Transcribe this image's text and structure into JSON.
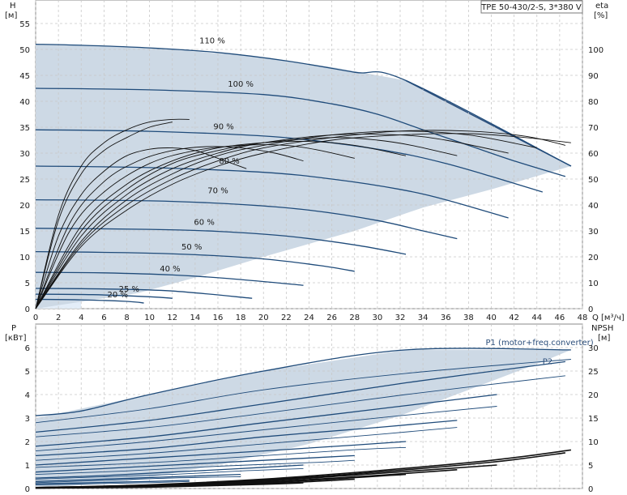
{
  "title_box": "TPE 50-430/2-S, 3*380 V",
  "colors": {
    "envelope_fill": "#cdd9e5",
    "envelope_light": "#e3edf8",
    "envelope_edge": "#2a4d7a",
    "speed_curve": "#1f4b7a",
    "eta_curve": "#111111",
    "grid": "#c8c8c8",
    "axis": "#888888"
  },
  "chart_data": [
    {
      "type": "line",
      "panel": "head",
      "ylabel_left": "H",
      "yunit_left": "[м]",
      "ylabel_right": "eta",
      "yunit_right": "[%]",
      "xlabel": "Q",
      "xunit": "[м³/ч]",
      "xlim": [
        0,
        48
      ],
      "xticks": [
        0,
        2,
        4,
        6,
        8,
        10,
        12,
        14,
        16,
        18,
        20,
        22,
        24,
        26,
        28,
        30,
        32,
        34,
        36,
        38,
        40,
        42,
        44,
        46,
        48
      ],
      "ylim_left": [
        0,
        55
      ],
      "yticks_left": [
        0,
        5,
        10,
        15,
        20,
        25,
        30,
        35,
        40,
        45,
        50,
        55
      ],
      "ylim_right": [
        0,
        110
      ],
      "yticks_right": [
        0,
        10,
        20,
        30,
        40,
        50,
        60,
        70,
        80,
        90,
        100
      ],
      "grid": true,
      "speed_labels": [
        {
          "label": "110 %",
          "x": 15.5,
          "y": 51.2
        },
        {
          "label": "100 %",
          "x": 18.0,
          "y": 42.8
        },
        {
          "label": "90 %",
          "x": 16.5,
          "y": 34.6
        },
        {
          "label": "80 %",
          "x": 17.0,
          "y": 28.0
        },
        {
          "label": "70 %",
          "x": 16.0,
          "y": 22.3
        },
        {
          "label": "60 %",
          "x": 14.8,
          "y": 16.2
        },
        {
          "label": "50 %",
          "x": 13.7,
          "y": 11.4
        },
        {
          "label": "40 %",
          "x": 11.8,
          "y": 7.2
        },
        {
          "label": "25 %",
          "x": 8.2,
          "y": 3.3
        },
        {
          "label": "20 %",
          "x": 7.2,
          "y": 2.2
        }
      ],
      "envelope": [
        [
          0,
          51
        ],
        [
          4,
          50.8
        ],
        [
          10,
          50.3
        ],
        [
          18,
          48.9
        ],
        [
          26,
          46.6
        ],
        [
          32.5,
          44
        ],
        [
          47,
          27.5
        ],
        [
          40,
          23
        ],
        [
          34,
          19.5
        ],
        [
          28,
          15
        ],
        [
          20,
          10
        ],
        [
          14,
          6
        ],
        [
          9,
          3
        ],
        [
          0,
          0
        ]
      ],
      "speed_curves": [
        {
          "pct": 110,
          "x": [
            0,
            4,
            10,
            16,
            22,
            28,
            32.5,
            47
          ],
          "y": [
            51,
            50.8,
            50.3,
            49.4,
            47.8,
            45.6,
            44,
            27.5
          ]
        },
        {
          "pct": 100,
          "x": [
            0,
            10,
            20,
            26,
            30,
            34,
            38,
            42,
            46.5
          ],
          "y": [
            42.5,
            42.2,
            41.3,
            39.5,
            37.5,
            34.5,
            31.5,
            28.5,
            25.5
          ]
        },
        {
          "pct": 90,
          "x": [
            0,
            10,
            20,
            26,
            32,
            36,
            40,
            44.5
          ],
          "y": [
            34.5,
            34.2,
            33.3,
            32,
            30,
            28,
            25.5,
            22.5
          ]
        },
        {
          "pct": 80,
          "x": [
            0,
            10,
            20,
            26,
            32,
            36,
            41.5
          ],
          "y": [
            27.5,
            27.2,
            26.3,
            25,
            23,
            21,
            17.5
          ]
        },
        {
          "pct": 70,
          "x": [
            0,
            10,
            18,
            24,
            30,
            34,
            37
          ],
          "y": [
            21,
            20.8,
            20.1,
            19,
            17,
            15,
            13.5
          ]
        },
        {
          "pct": 60,
          "x": [
            0,
            10,
            16,
            22,
            28,
            32.5
          ],
          "y": [
            15.5,
            15.3,
            14.9,
            14,
            12.3,
            10.5
          ]
        },
        {
          "pct": 50,
          "x": [
            0,
            8,
            14,
            20,
            25,
            28
          ],
          "y": [
            11,
            10.8,
            10.4,
            9.6,
            8.3,
            7.2
          ]
        },
        {
          "pct": 40,
          "x": [
            0,
            6,
            12,
            17,
            23.5
          ],
          "y": [
            7,
            6.9,
            6.5,
            5.8,
            4.5
          ]
        },
        {
          "pct": 30,
          "x": [
            0,
            6,
            12,
            19
          ],
          "y": [
            3.9,
            3.8,
            3.4,
            2
          ]
        },
        {
          "pct": 25,
          "x": [
            0,
            5,
            10,
            12
          ],
          "y": [
            2.8,
            2.7,
            2.3,
            2
          ]
        },
        {
          "pct": 20,
          "x": [
            0,
            4,
            8,
            9.5
          ],
          "y": [
            1.8,
            1.7,
            1.4,
            1.1
          ]
        }
      ],
      "eta_curves": [
        {
          "pct": 110,
          "x": [
            0,
            4,
            8,
            12,
            16,
            20,
            26,
            32,
            38,
            43,
            47
          ],
          "eta": [
            0,
            24,
            38,
            48,
            55,
            60,
            65,
            67,
            67.5,
            66,
            64
          ]
        },
        {
          "pct": 100,
          "x": [
            0,
            4,
            8,
            12,
            16,
            20,
            26,
            32,
            38,
            43,
            46.5
          ],
          "eta": [
            0,
            25,
            40,
            50,
            57,
            62,
            66,
            68.5,
            68.5,
            66.5,
            63
          ]
        },
        {
          "pct": 90,
          "x": [
            0,
            4,
            8,
            12,
            16,
            20,
            26,
            32,
            38,
            44
          ],
          "eta": [
            0,
            26,
            42,
            52,
            59,
            63,
            67,
            68.5,
            67,
            62
          ]
        },
        {
          "pct": 80,
          "x": [
            0,
            4,
            8,
            12,
            16,
            20,
            26,
            32,
            36,
            41.5
          ],
          "eta": [
            0,
            28,
            44,
            54,
            60,
            64,
            67,
            67,
            65,
            60
          ]
        },
        {
          "pct": 70,
          "x": [
            0,
            4,
            8,
            12,
            16,
            20,
            26,
            30,
            33,
            37
          ],
          "eta": [
            0,
            30,
            46,
            56,
            61,
            64,
            66,
            65,
            63,
            59
          ]
        },
        {
          "pct": 60,
          "x": [
            0,
            4,
            8,
            12,
            16,
            20,
            24,
            28,
            32.5
          ],
          "eta": [
            0,
            32,
            48,
            57,
            62,
            64,
            64.5,
            63,
            59
          ]
        },
        {
          "pct": 50,
          "x": [
            0,
            3,
            6,
            10,
            14,
            18,
            22,
            25,
            28
          ],
          "eta": [
            0,
            30,
            45,
            56,
            61,
            63,
            63,
            61,
            58
          ]
        },
        {
          "pct": 40,
          "x": [
            0,
            3,
            6,
            9,
            12,
            15,
            18,
            21,
            23.5
          ],
          "eta": [
            0,
            33,
            49,
            57,
            61,
            62.5,
            62,
            60,
            57
          ]
        },
        {
          "pct": 30,
          "x": [
            0,
            2,
            4,
            6,
            8,
            10,
            12,
            14,
            16,
            18.5
          ],
          "eta": [
            0,
            28,
            44,
            53,
            59,
            61.5,
            62,
            61,
            58,
            54
          ]
        },
        {
          "pct": 25,
          "x": [
            0,
            2,
            4,
            6,
            8,
            10,
            12
          ],
          "eta": [
            0,
            34,
            52,
            61,
            66,
            70,
            72
          ]
        },
        {
          "pct": 20,
          "x": [
            0,
            2,
            4,
            6,
            8,
            10,
            12,
            13.5
          ],
          "eta": [
            0,
            36,
            55,
            64,
            69,
            72,
            73,
            73
          ]
        }
      ]
    },
    {
      "type": "line",
      "panel": "power",
      "ylabel_left": "P",
      "yunit_left": "[кВт]",
      "ylabel_right": "NPSH",
      "yunit_right": "[м]",
      "xlim": [
        0,
        48
      ],
      "ylim_left": [
        0,
        7
      ],
      "yticks_left": [
        0,
        1,
        2,
        3,
        4,
        5,
        6
      ],
      "ylim_right": [
        0,
        35
      ],
      "yticks_right": [
        0,
        5,
        10,
        15,
        20,
        25,
        30
      ],
      "grid": true,
      "series_labels": [
        {
          "label": "P1 (motor+freq.converter)",
          "x": 39.5,
          "y": 6.1
        },
        {
          "label": "P2",
          "x": 44.5,
          "y": 5.3
        }
      ],
      "envelope": [
        [
          0,
          3
        ],
        [
          10,
          4
        ],
        [
          20,
          5
        ],
        [
          32.5,
          5.9
        ],
        [
          47,
          5.9
        ],
        [
          44,
          5.3
        ],
        [
          38,
          4.2
        ],
        [
          32,
          3.1
        ],
        [
          24,
          1.9
        ],
        [
          16,
          1
        ],
        [
          8,
          0.3
        ],
        [
          0,
          0
        ]
      ],
      "p1_curves": [
        {
          "pct": 110,
          "x": [
            0,
            4,
            10,
            20,
            32.5,
            47
          ],
          "y": [
            3.1,
            3.3,
            4,
            5,
            5.9,
            5.9
          ]
        },
        {
          "pct": 100,
          "x": [
            0,
            10,
            20,
            32.5,
            46.5
          ],
          "y": [
            2.4,
            2.9,
            3.6,
            4.5,
            5.4
          ]
        },
        {
          "pct": 90,
          "x": [
            0,
            10,
            20,
            32,
            40.5
          ],
          "y": [
            1.8,
            2.2,
            2.8,
            3.5,
            4
          ]
        },
        {
          "pct": 80,
          "x": [
            0,
            10,
            20,
            30,
            37
          ],
          "y": [
            1.4,
            1.7,
            2.2,
            2.6,
            2.9
          ]
        },
        {
          "pct": 70,
          "x": [
            0,
            10,
            20,
            28,
            32.5
          ],
          "y": [
            1,
            1.3,
            1.6,
            1.85,
            2
          ]
        },
        {
          "pct": 60,
          "x": [
            0,
            8,
            16,
            24,
            28
          ],
          "y": [
            0.7,
            0.9,
            1.1,
            1.3,
            1.4
          ]
        },
        {
          "pct": 50,
          "x": [
            0,
            6,
            12,
            18,
            23.5
          ],
          "y": [
            0.45,
            0.55,
            0.7,
            0.85,
            1
          ]
        },
        {
          "pct": 40,
          "x": [
            0,
            6,
            12,
            18
          ],
          "y": [
            0.3,
            0.4,
            0.5,
            0.6
          ]
        },
        {
          "pct": 30,
          "x": [
            0,
            5,
            10,
            13.5
          ],
          "y": [
            0.2,
            0.25,
            0.3,
            0.35
          ]
        }
      ],
      "p2_curves": [
        {
          "pct": 110,
          "x": [
            0,
            10,
            20,
            32.5,
            47
          ],
          "y": [
            2.8,
            3.4,
            4.2,
            4.9,
            5.5
          ]
        },
        {
          "pct": 100,
          "x": [
            0,
            10,
            20,
            32.5,
            46.5
          ],
          "y": [
            2.2,
            2.6,
            3.2,
            4,
            4.8
          ]
        },
        {
          "pct": 90,
          "x": [
            0,
            10,
            20,
            32,
            40.5
          ],
          "y": [
            1.6,
            2,
            2.5,
            3.1,
            3.5
          ]
        },
        {
          "pct": 80,
          "x": [
            0,
            10,
            20,
            30,
            37
          ],
          "y": [
            1.2,
            1.5,
            1.9,
            2.3,
            2.6
          ]
        },
        {
          "pct": 70,
          "x": [
            0,
            10,
            20,
            28,
            32.5
          ],
          "y": [
            0.9,
            1.1,
            1.4,
            1.65,
            1.75
          ]
        },
        {
          "pct": 60,
          "x": [
            0,
            8,
            16,
            24,
            28
          ],
          "y": [
            0.6,
            0.75,
            0.95,
            1.1,
            1.2
          ]
        },
        {
          "pct": 50,
          "x": [
            0,
            6,
            12,
            18,
            23.5
          ],
          "y": [
            0.4,
            0.5,
            0.6,
            0.75,
            0.85
          ]
        },
        {
          "pct": 40,
          "x": [
            0,
            6,
            12,
            18
          ],
          "y": [
            0.25,
            0.35,
            0.45,
            0.5
          ]
        },
        {
          "pct": 30,
          "x": [
            0,
            5,
            10,
            13.5
          ],
          "y": [
            0.15,
            0.2,
            0.25,
            0.3
          ]
        }
      ],
      "npsh_curves": [
        {
          "pct": 110,
          "x": [
            0,
            10,
            20,
            30,
            40,
            47
          ],
          "npsh": [
            0.2,
            0.8,
            2,
            3.8,
            6,
            8.2
          ]
        },
        {
          "pct": 100,
          "x": [
            0,
            10,
            20,
            30,
            40,
            46.5
          ],
          "npsh": [
            0.2,
            0.7,
            1.8,
            3.5,
            5.6,
            7.6
          ]
        },
        {
          "pct": 90,
          "x": [
            0,
            10,
            20,
            30,
            40.5
          ],
          "npsh": [
            0.2,
            0.6,
            1.6,
            3.2,
            5
          ]
        },
        {
          "pct": 80,
          "x": [
            0,
            10,
            20,
            30,
            37
          ],
          "npsh": [
            0.15,
            0.5,
            1.4,
            2.8,
            4
          ]
        },
        {
          "pct": 70,
          "x": [
            0,
            10,
            20,
            32.5
          ],
          "npsh": [
            0.1,
            0.4,
            1.2,
            3
          ]
        },
        {
          "pct": 60,
          "x": [
            0,
            10,
            20,
            28
          ],
          "npsh": [
            0.1,
            0.35,
            1,
            2
          ]
        },
        {
          "pct": 50,
          "x": [
            0,
            10,
            20,
            23.5
          ],
          "npsh": [
            0.1,
            0.3,
            0.9,
            1.2
          ]
        }
      ]
    }
  ]
}
